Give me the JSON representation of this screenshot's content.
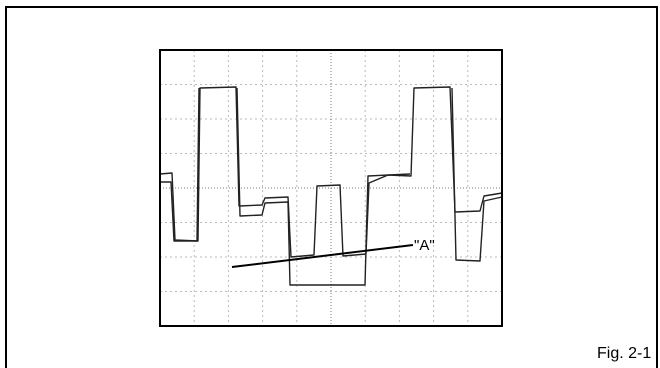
{
  "figure": {
    "annotation": "\"A\"",
    "caption": "Fig. 2-1"
  }
}
